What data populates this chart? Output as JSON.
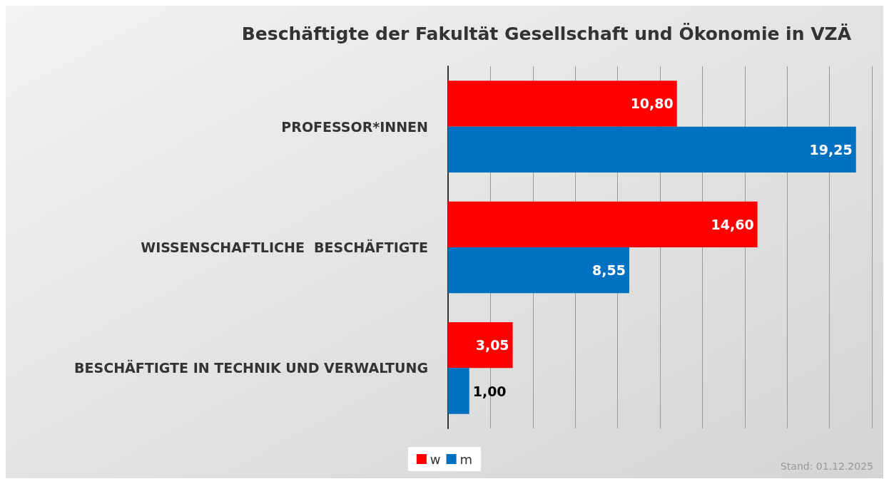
{
  "chart_data": {
    "type": "bar",
    "orientation": "horizontal",
    "title": "Beschäftigte der Fakultät Gesellschaft und Ökonomie in VZÄ",
    "categories": [
      "PROFESSOR*INNEN",
      "WISSENSCHAFTLICHE  BESCHÄFTIGTE",
      "BESCHÄFTIGTE IN TECHNIK UND VERWALTUNG"
    ],
    "series": [
      {
        "name": "w",
        "color": "#ff0000",
        "values": [
          10.8,
          14.6,
          3.05
        ],
        "value_labels": [
          "10,80",
          "14,60",
          "3,05"
        ]
      },
      {
        "name": "m",
        "color": "#0070c0",
        "values": [
          19.25,
          8.55,
          1.0
        ],
        "value_labels": [
          "19,25",
          "8,55",
          "1,00"
        ]
      }
    ],
    "xlim": [
      0,
      20
    ],
    "xticks": [
      {
        "value": 0,
        "label": null
      },
      {
        "value": 2,
        "label": null
      },
      {
        "value": 4,
        "label": null
      },
      {
        "value": 6,
        "label": null
      },
      {
        "value": 8,
        "label": null
      },
      {
        "value": 10,
        "label": null
      },
      {
        "value": 12,
        "label": null
      },
      {
        "value": 14,
        "label": null
      },
      {
        "value": 16,
        "label": null
      },
      {
        "value": 18,
        "label": null
      },
      {
        "value": 20,
        "label": null
      }
    ],
    "tick_labels": "y",
    "grid": "x",
    "legend": "bottom",
    "annotations": [
      "Stand: 01.12.2025"
    ]
  }
}
